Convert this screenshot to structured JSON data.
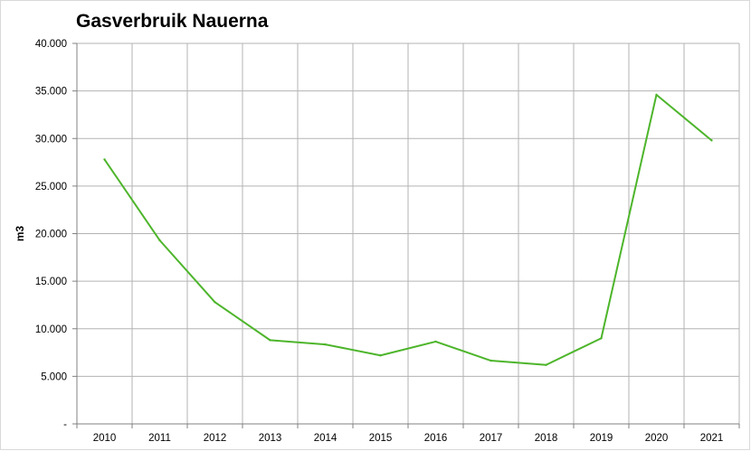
{
  "chart_data": {
    "type": "line",
    "title": "Gasverbruik Nauerna",
    "xlabel": "",
    "ylabel": "m3",
    "categories": [
      "2010",
      "2011",
      "2012",
      "2013",
      "2014",
      "2015",
      "2016",
      "2017",
      "2018",
      "2019",
      "2020",
      "2021"
    ],
    "series": [
      {
        "values": [
          27800,
          19300,
          12800,
          8800,
          8350,
          7200,
          8650,
          6650,
          6200,
          9000,
          34600,
          29800
        ]
      }
    ],
    "ylim": [
      0,
      40000
    ],
    "y_ticks": [
      {
        "value": 0,
        "label": "-"
      },
      {
        "value": 5000,
        "label": "5.000"
      },
      {
        "value": 10000,
        "label": "10.000"
      },
      {
        "value": 15000,
        "label": "15.000"
      },
      {
        "value": 20000,
        "label": "20.000"
      },
      {
        "value": 25000,
        "label": "25.000"
      },
      {
        "value": 30000,
        "label": "30.000"
      },
      {
        "value": 35000,
        "label": "35.000"
      },
      {
        "value": 40000,
        "label": "40.000"
      }
    ],
    "grid": true,
    "legend": "none",
    "colors": {
      "line": "#4db52b",
      "grid": "#b3b3b3",
      "axis": "#808080"
    }
  }
}
